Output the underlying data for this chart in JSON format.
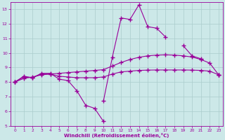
{
  "xlabel": "Windchill (Refroidissement éolien,°C)",
  "x_values": [
    0,
    1,
    2,
    3,
    4,
    5,
    6,
    7,
    8,
    9,
    10,
    11,
    12,
    13,
    14,
    15,
    16,
    17,
    18,
    19,
    20,
    21,
    22,
    23
  ],
  "y_zigzag": [
    8.0,
    8.4,
    8.3,
    8.6,
    8.6,
    8.2,
    8.1,
    7.4,
    6.4,
    6.2,
    5.3,
    null,
    null,
    null,
    null,
    null,
    null,
    null,
    null,
    null,
    null,
    null,
    null,
    null
  ],
  "y_zigzag2": [
    null,
    null,
    null,
    null,
    null,
    null,
    null,
    null,
    null,
    null,
    6.7,
    9.7,
    12.4,
    12.3,
    13.3,
    11.8,
    11.7,
    11.1,
    null,
    10.5,
    9.8,
    9.6,
    null,
    8.5
  ],
  "y_upper": [
    8.0,
    8.25,
    8.35,
    8.5,
    8.55,
    8.6,
    8.65,
    8.7,
    8.75,
    8.8,
    8.85,
    9.1,
    9.35,
    9.55,
    9.7,
    9.8,
    9.85,
    9.87,
    9.85,
    9.8,
    9.72,
    9.55,
    9.3,
    8.5
  ],
  "y_lower": [
    8.0,
    8.35,
    8.3,
    8.55,
    8.55,
    8.4,
    8.35,
    8.3,
    8.3,
    8.3,
    8.35,
    8.55,
    8.7,
    8.75,
    8.8,
    8.82,
    8.83,
    8.83,
    8.83,
    8.83,
    8.82,
    8.8,
    8.75,
    8.5
  ],
  "ylim": [
    5,
    13.5
  ],
  "xlim": [
    -0.5,
    23.5
  ],
  "yticks": [
    5,
    6,
    7,
    8,
    9,
    10,
    11,
    12,
    13
  ],
  "xticks": [
    0,
    1,
    2,
    3,
    4,
    5,
    6,
    7,
    8,
    9,
    10,
    11,
    12,
    13,
    14,
    15,
    16,
    17,
    18,
    19,
    20,
    21,
    22,
    23
  ],
  "line_color": "#990099",
  "bg_color": "#cce8e8",
  "grid_color": "#aacccc",
  "tick_color": "#990099",
  "label_color": "#990099"
}
